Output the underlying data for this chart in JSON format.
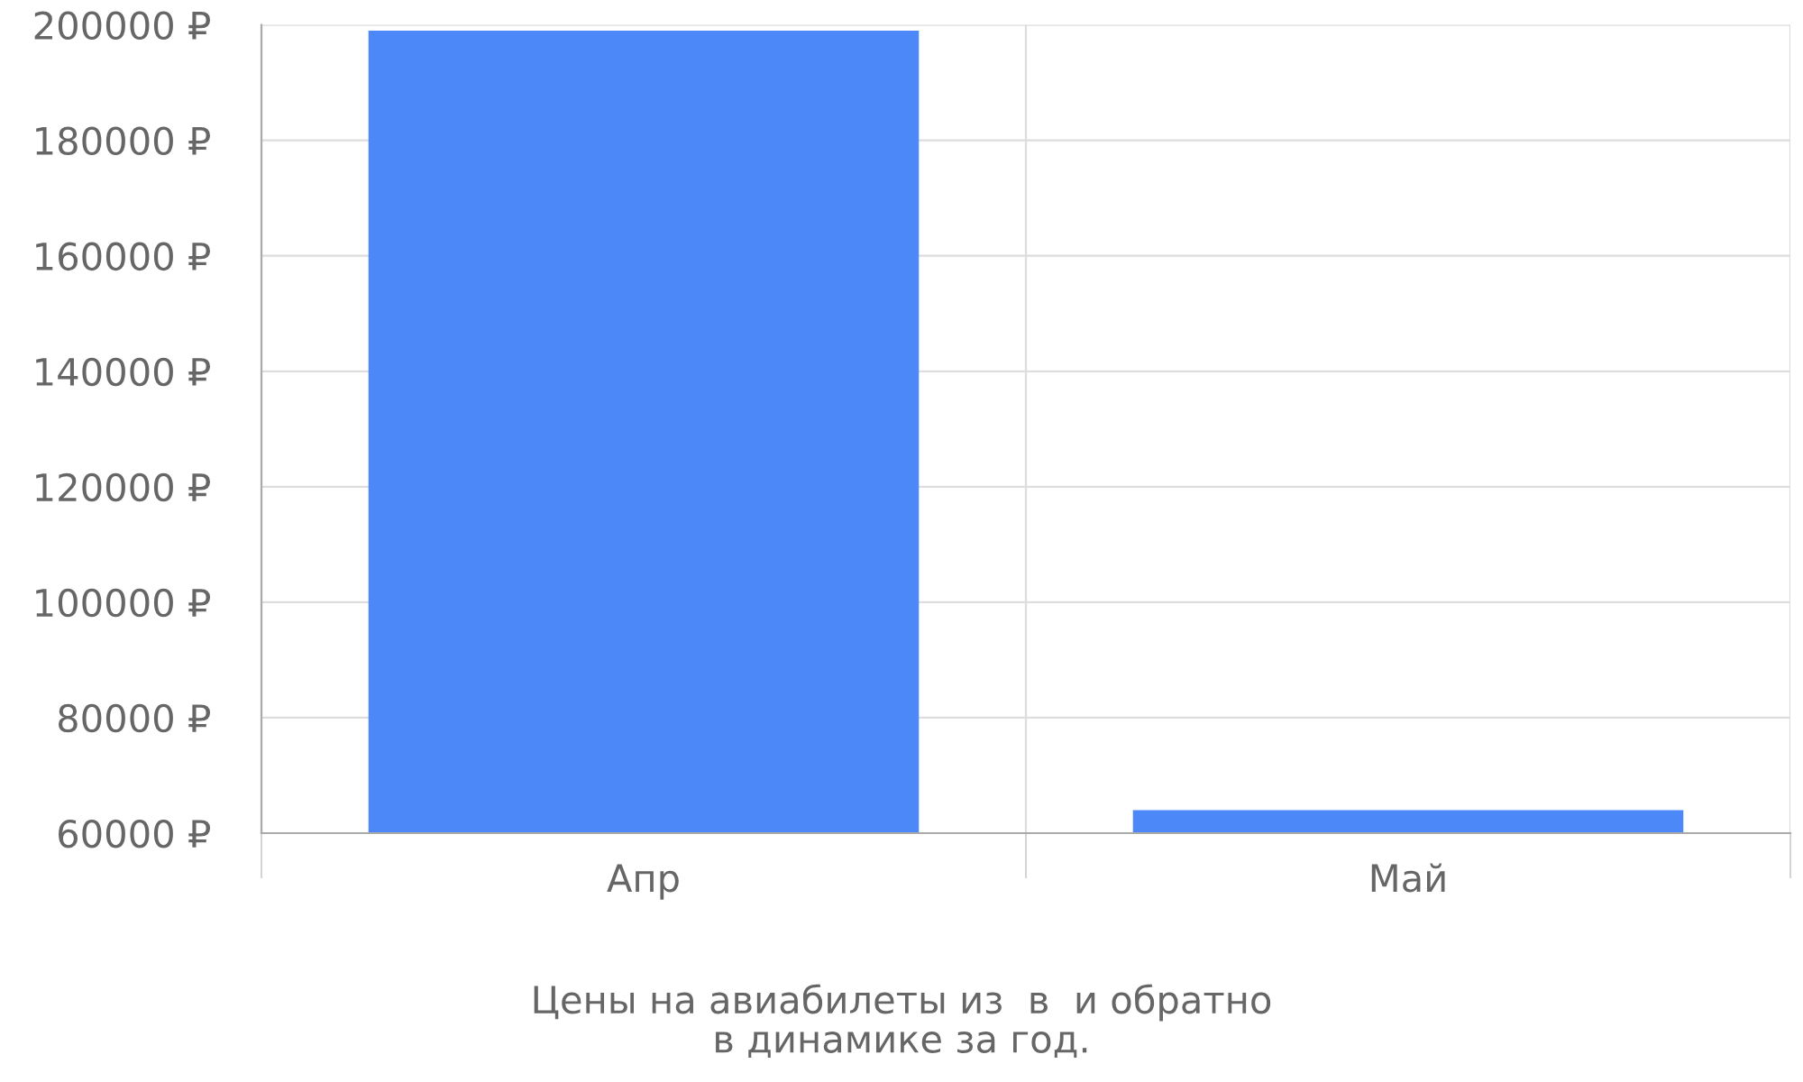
{
  "chart_data": {
    "type": "bar",
    "categories": [
      "Апр",
      "Май"
    ],
    "values": [
      199000,
      64000
    ],
    "color": "#4d88f9",
    "ylim": [
      60000,
      200000
    ],
    "yticks": [
      {
        "value": 60000,
        "label": "60000 ₽"
      },
      {
        "value": 80000,
        "label": "80000 ₽"
      },
      {
        "value": 100000,
        "label": "100000 ₽"
      },
      {
        "value": 120000,
        "label": "120000 ₽"
      },
      {
        "value": 140000,
        "label": "140000 ₽"
      },
      {
        "value": 160000,
        "label": "160000 ₽"
      },
      {
        "value": 180000,
        "label": "180000 ₽"
      },
      {
        "value": 200000,
        "label": "200000 ₽"
      }
    ],
    "grid": true,
    "annotations": [
      "Цены на авиабилеты из  в  и обратно\nв динамике за год."
    ]
  }
}
